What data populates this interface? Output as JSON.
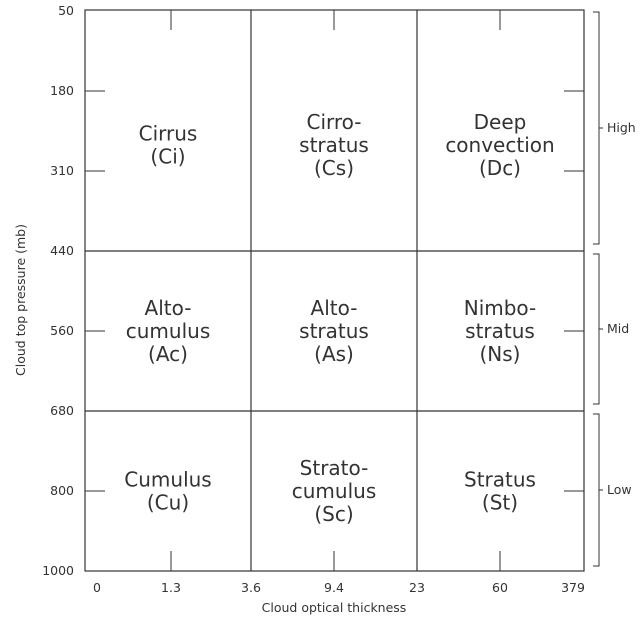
{
  "axes": {
    "x_title": "Cloud optical thickness",
    "y_title": "Cloud top pressure (mb)",
    "x_ticks": [
      "0",
      "1.3",
      "3.6",
      "9.4",
      "23",
      "60",
      "379"
    ],
    "y_ticks": [
      "50",
      "180",
      "310",
      "440",
      "560",
      "680",
      "800",
      "1000"
    ]
  },
  "cells": [
    {
      "id": "ci",
      "row": 0,
      "col": 0,
      "lines": [
        "Cirrus",
        "(Ci)"
      ]
    },
    {
      "id": "cs",
      "row": 0,
      "col": 1,
      "lines": [
        "Cirro-",
        "stratus",
        "(Cs)"
      ]
    },
    {
      "id": "dc",
      "row": 0,
      "col": 2,
      "lines": [
        "Deep",
        "convection",
        "(Dc)"
      ]
    },
    {
      "id": "ac",
      "row": 1,
      "col": 0,
      "lines": [
        "Alto-",
        "cumulus",
        "(Ac)"
      ]
    },
    {
      "id": "as",
      "row": 1,
      "col": 1,
      "lines": [
        "Alto-",
        "stratus",
        "(As)"
      ]
    },
    {
      "id": "ns",
      "row": 1,
      "col": 2,
      "lines": [
        "Nimbo-",
        "stratus",
        "(Ns)"
      ]
    },
    {
      "id": "cu",
      "row": 2,
      "col": 0,
      "lines": [
        "Cumulus",
        "(Cu)"
      ]
    },
    {
      "id": "sc",
      "row": 2,
      "col": 1,
      "lines": [
        "Strato-",
        "cumulus",
        "(Sc)"
      ]
    },
    {
      "id": "st",
      "row": 2,
      "col": 2,
      "lines": [
        "Stratus",
        "(St)"
      ]
    }
  ],
  "bands": [
    {
      "id": "high",
      "label": "High"
    },
    {
      "id": "mid",
      "label": "Mid"
    },
    {
      "id": "low",
      "label": "Low"
    }
  ]
}
